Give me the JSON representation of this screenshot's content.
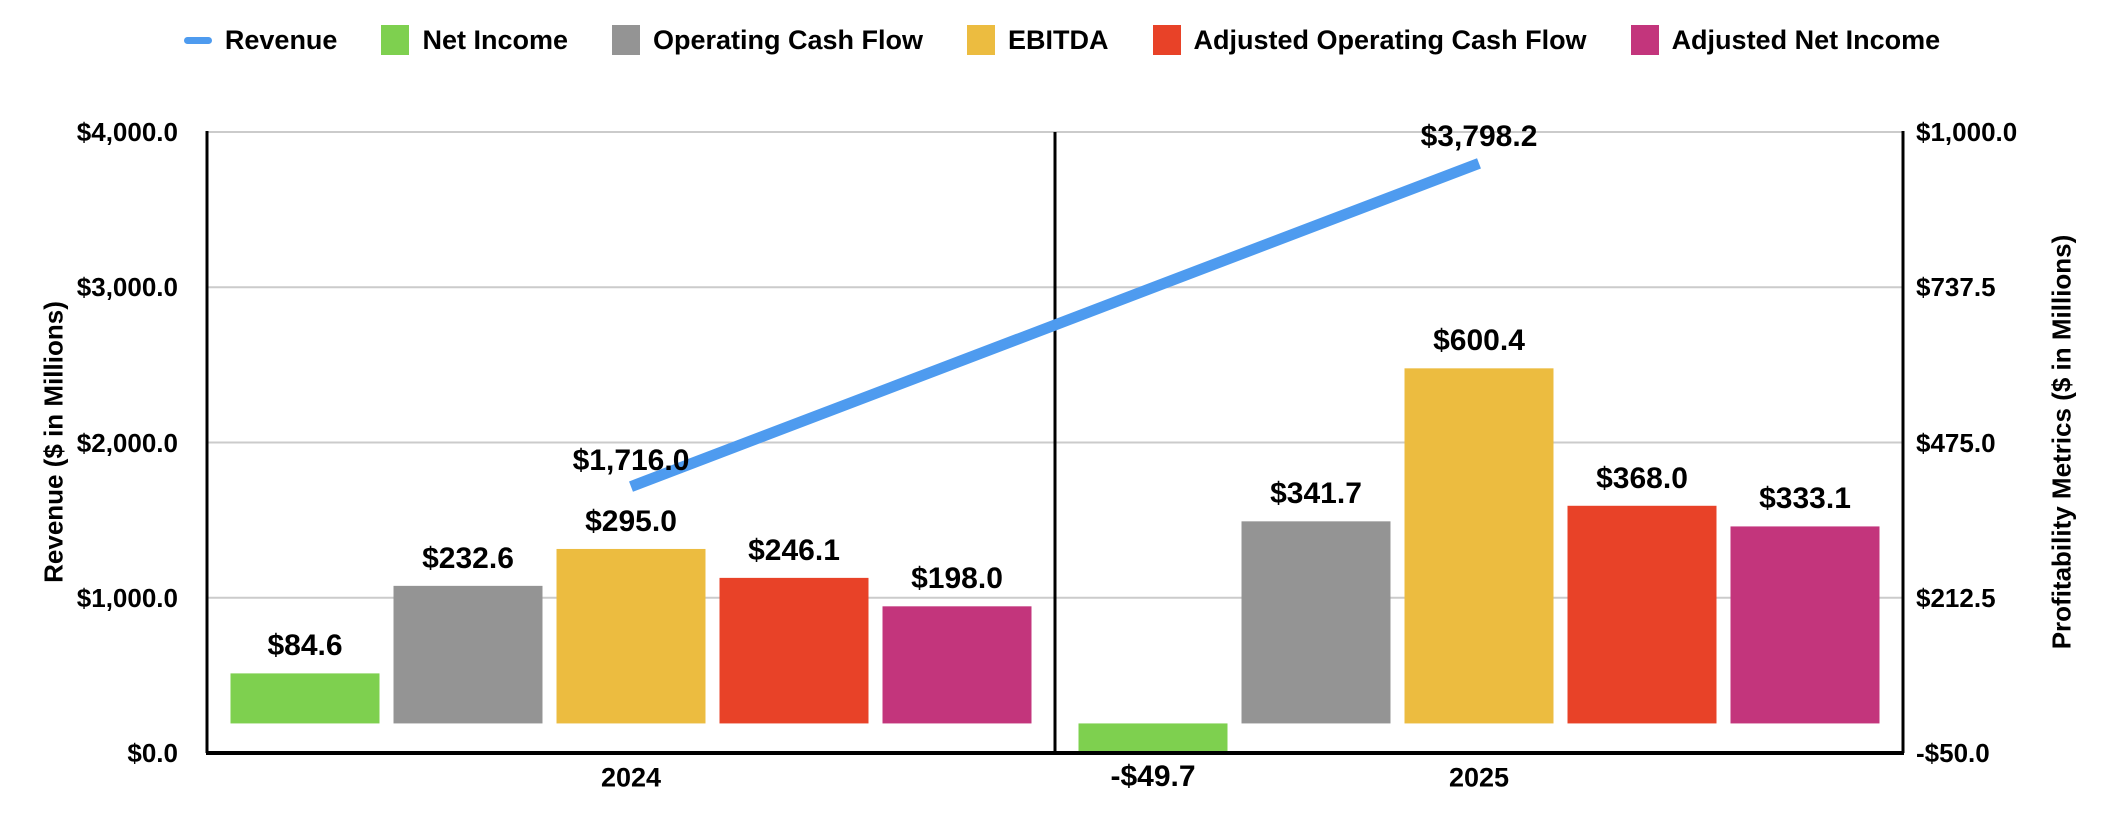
{
  "chart_data": {
    "type": "bar-line-combo",
    "categories": [
      "2024",
      "2025"
    ],
    "left_axis": {
      "title": "Revenue ($ in Millions)",
      "min": 0,
      "max": 4000,
      "ticks": [
        {
          "value": 0,
          "label": "$0.0"
        },
        {
          "value": 1000,
          "label": "$1,000.0"
        },
        {
          "value": 2000,
          "label": "$2,000.0"
        },
        {
          "value": 3000,
          "label": "$3,000.0"
        },
        {
          "value": 4000,
          "label": "$4,000.0"
        }
      ]
    },
    "right_axis": {
      "title": "Profitability Metrics ($ in Millions)",
      "min": -50,
      "max": 1000,
      "ticks": [
        {
          "value": -50,
          "label": "-$50.0"
        },
        {
          "value": 212.5,
          "label": "$212.5"
        },
        {
          "value": 475,
          "label": "$475.0"
        },
        {
          "value": 737.5,
          "label": "$737.5"
        },
        {
          "value": 1000,
          "label": "$1,000.0"
        }
      ]
    },
    "line_series": {
      "name": "Revenue",
      "axis": "left",
      "color": "#4E9BEF",
      "values": [
        1716.0,
        3798.2
      ],
      "labels": [
        "$1,716.0",
        "$3,798.2"
      ]
    },
    "bar_series": [
      {
        "name": "Net Income",
        "axis": "right",
        "color": "#7ED04F",
        "values": [
          84.6,
          -49.7
        ],
        "labels": [
          "$84.6",
          "-$49.7"
        ]
      },
      {
        "name": "Operating Cash Flow",
        "axis": "right",
        "color": "#949494",
        "values": [
          232.6,
          341.7
        ],
        "labels": [
          "$232.6",
          "$341.7"
        ]
      },
      {
        "name": "EBITDA",
        "axis": "right",
        "color": "#ECBC40",
        "values": [
          295.0,
          600.4
        ],
        "labels": [
          "$295.0",
          "$600.4"
        ]
      },
      {
        "name": "Adjusted Operating Cash Flow",
        "axis": "right",
        "color": "#E84228",
        "values": [
          246.1,
          368.0
        ],
        "labels": [
          "$246.1",
          "$368.0"
        ]
      },
      {
        "name": "Adjusted Net Income",
        "axis": "right",
        "color": "#C3357C",
        "values": [
          198.0,
          333.1
        ],
        "labels": [
          "$198.0",
          "$333.1"
        ]
      }
    ],
    "legend": {
      "position": "top",
      "items": [
        "Revenue",
        "Net Income",
        "Operating Cash Flow",
        "EBITDA",
        "Adjusted Operating Cash Flow",
        "Adjusted Net Income"
      ]
    },
    "grid": true,
    "colors": {
      "grid": "#CBCBCB",
      "axis": "#000000",
      "text": "#000000",
      "background": "#FFFFFF"
    }
  }
}
